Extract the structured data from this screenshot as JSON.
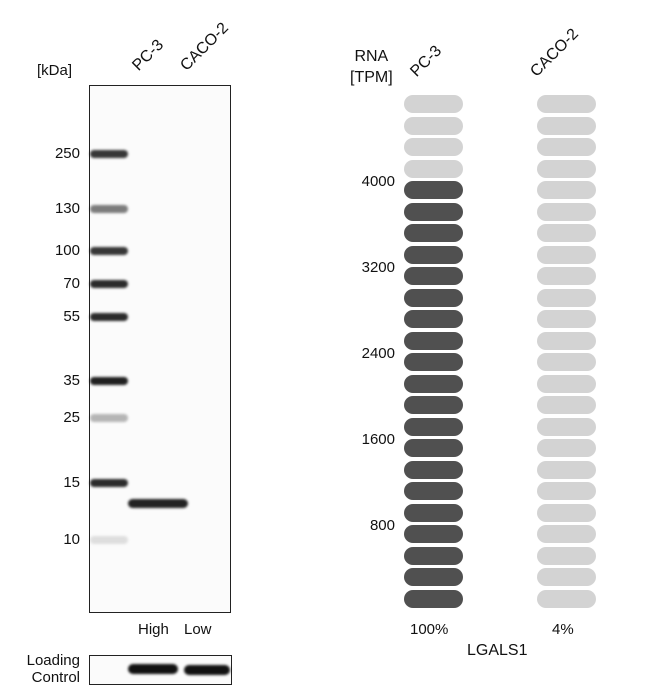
{
  "western_blot": {
    "unit_label": "[kDa]",
    "lanes": [
      "PC-3",
      "CACO-2"
    ],
    "markers": [
      "250",
      "130",
      "100",
      "70",
      "55",
      "35",
      "25",
      "15",
      "10"
    ],
    "lane_levels": [
      "High",
      "Low"
    ],
    "loading_control_label": [
      "Loading",
      "Control"
    ]
  },
  "chart_data": {
    "type": "bar",
    "title": "",
    "ylabel": [
      "RNA",
      "[TPM]"
    ],
    "y_ticks": [
      "4000",
      "3200",
      "2400",
      "1600",
      "800"
    ],
    "categories": [
      "PC-3",
      "CACO-2"
    ],
    "values_percent": [
      100,
      4
    ],
    "value_labels": [
      "100%",
      "4%"
    ],
    "gene": "LGALS1",
    "total_pills": 24,
    "filled_pills": [
      20,
      0
    ],
    "colors": {
      "filled": "#505050",
      "empty": "#d3d3d3"
    }
  }
}
